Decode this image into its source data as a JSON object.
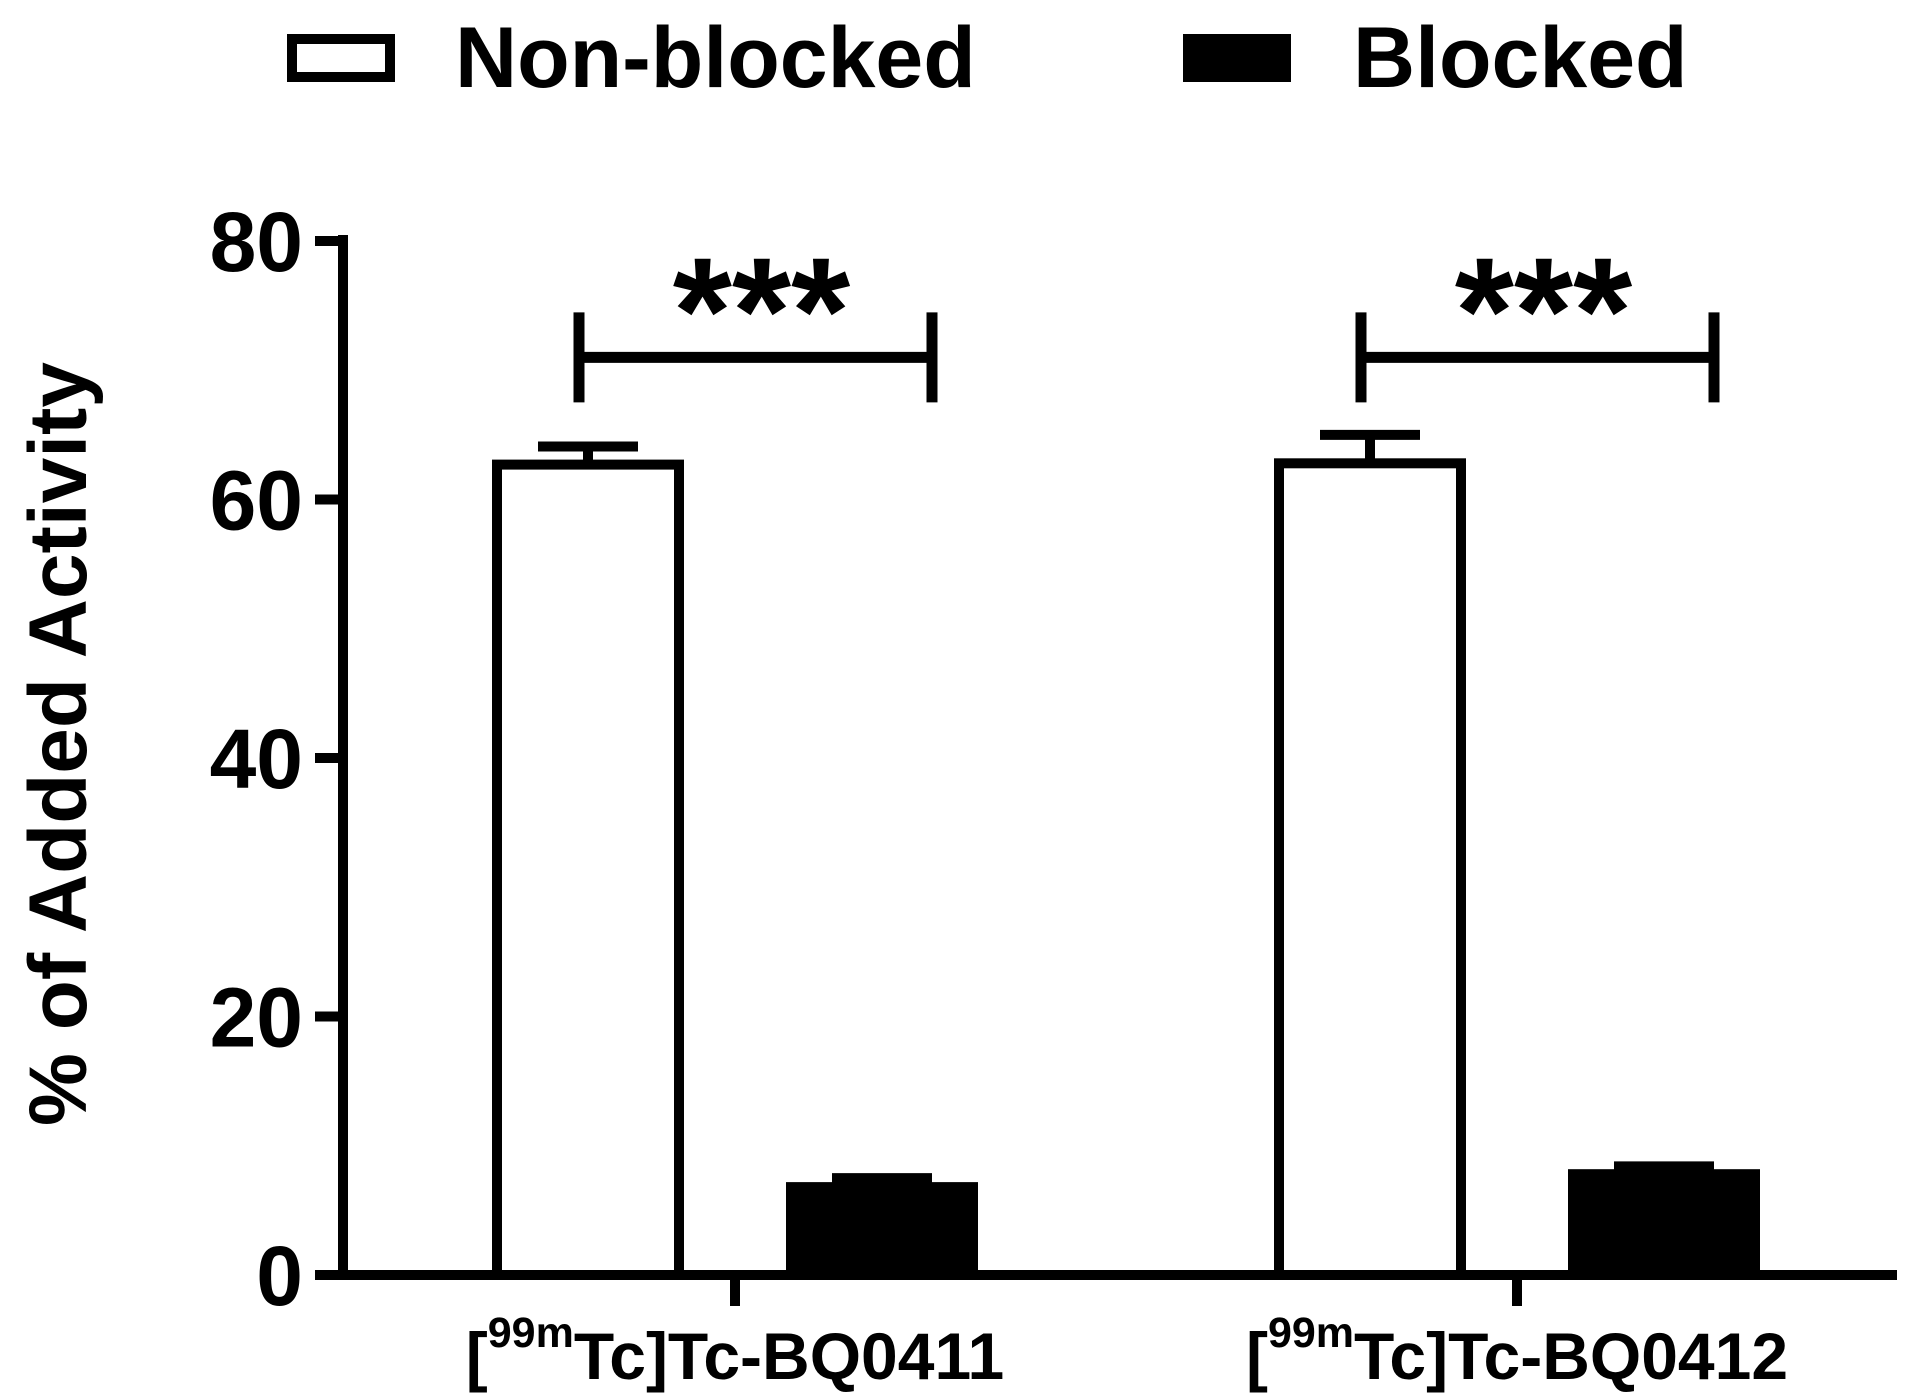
{
  "chart_data": {
    "type": "bar",
    "categories": [
      "[99mTc]Tc-BQ0411",
      "[99mTc]Tc-BQ0412"
    ],
    "series": [
      {
        "name": "Non-blocked",
        "values": [
          62.7,
          62.8
        ],
        "error": [
          1.4,
          2.2
        ],
        "fill": "#ffffff",
        "stroke": "#000000"
      },
      {
        "name": "Blocked",
        "values": [
          6.8,
          7.8
        ],
        "error": [
          0.7,
          0.6
        ],
        "fill": "#000000",
        "stroke": "#000000"
      }
    ],
    "xlabel": "",
    "ylabel": "% of Added Activity",
    "ylim": [
      0,
      80
    ],
    "yticks": [
      0,
      20,
      40,
      60,
      80
    ],
    "grid": false,
    "legend": "top",
    "annotations": [
      {
        "category_index": 0,
        "between_series": [
          0,
          1
        ],
        "label": "***"
      },
      {
        "category_index": 1,
        "between_series": [
          0,
          1
        ],
        "label": "***"
      }
    ]
  }
}
